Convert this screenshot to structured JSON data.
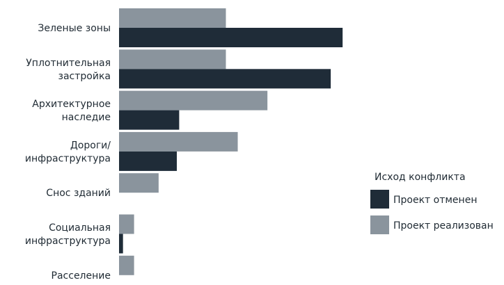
{
  "chart_data": {
    "type": "bar",
    "orientation": "horizontal",
    "categories": [
      [
        "Зеленые зоны"
      ],
      [
        "Уплотнительная",
        "застройка"
      ],
      [
        "Архитектурное",
        "наследие"
      ],
      [
        "Дороги/",
        "инфраструктура"
      ],
      [
        "Снос зданий"
      ],
      [
        "Социальная",
        "инфраструктура"
      ],
      [
        "Расселение"
      ]
    ],
    "series": [
      {
        "name": "Проект реализован",
        "color": "#8a949d",
        "values": [
          27,
          27,
          37.5,
          30,
          10,
          3.8,
          3.8
        ]
      },
      {
        "name": "Проект отменен",
        "color": "#1f2c38",
        "values": [
          56.5,
          53.5,
          15.2,
          14.6,
          0,
          1,
          0
        ]
      }
    ],
    "xlim": [
      0,
      57
    ],
    "legend": {
      "title": "Исход конфликта",
      "position": "right",
      "items": [
        {
          "label": "Проект отменен",
          "color": "#1f2c38"
        },
        {
          "label": "Проект реализован",
          "color": "#8a949d"
        }
      ]
    },
    "grid": false
  }
}
